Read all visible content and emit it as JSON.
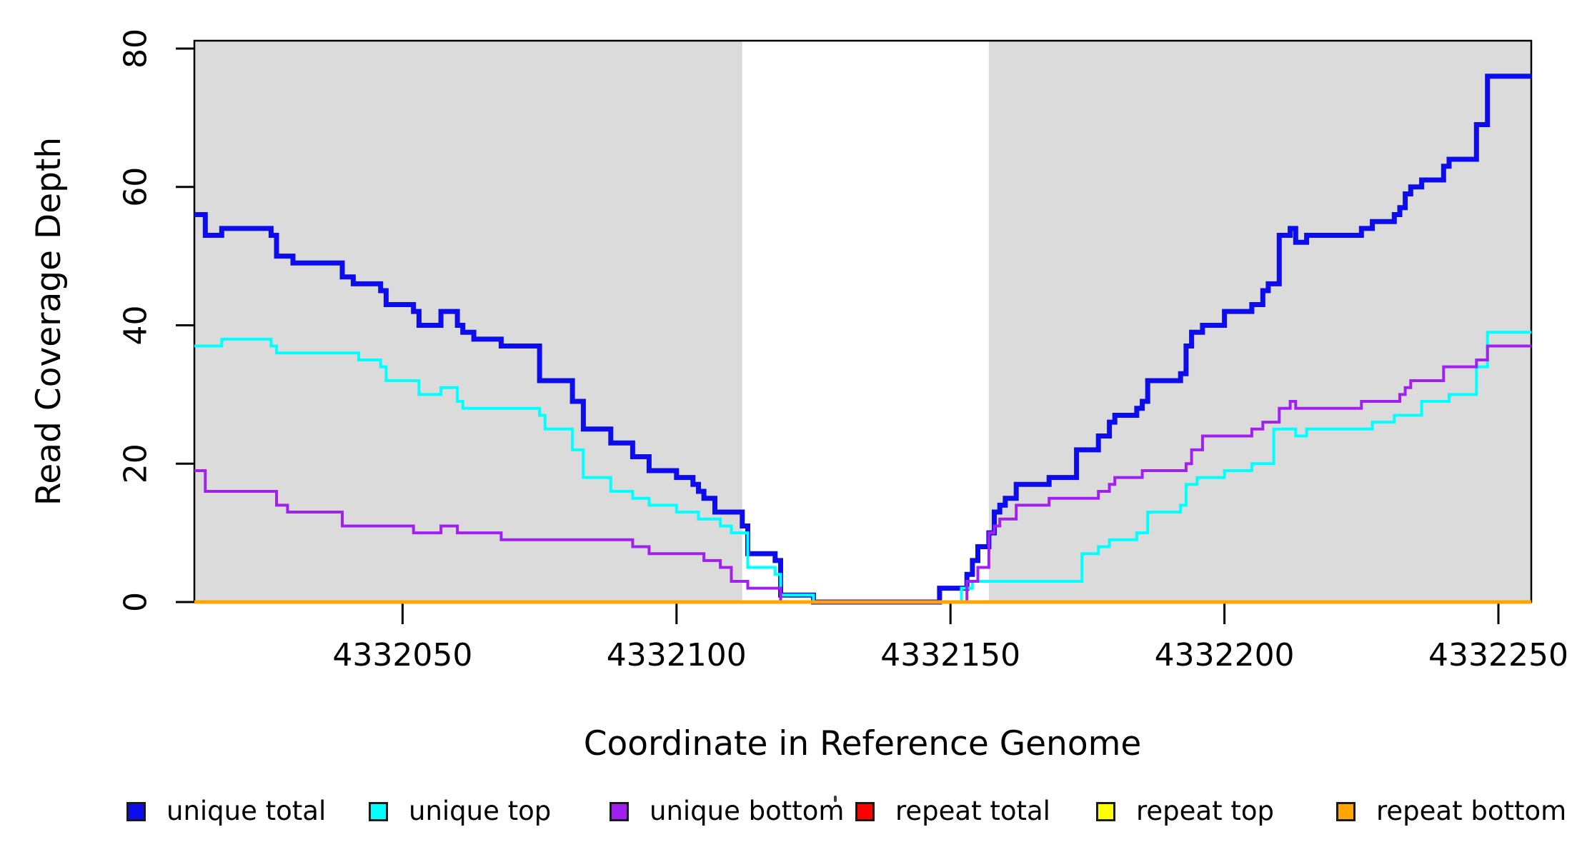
{
  "chart_data": {
    "type": "line",
    "subtype": "step",
    "title": "",
    "xlabel": "Coordinate in Reference Genome",
    "ylabel": "Read Coverage Depth",
    "xlim": [
      4332012,
      4332256
    ],
    "ylim": [
      0,
      80
    ],
    "x_ticks": [
      4332050,
      4332100,
      4332150,
      4332200,
      4332250
    ],
    "y_ticks": [
      0,
      20,
      40,
      60,
      80
    ],
    "grid": false,
    "legend_position": "bottom",
    "plot_bg": "#ffffff",
    "box_color": "#000000",
    "background_regions": [
      {
        "name": "left-shaded-region",
        "x0": 4332012,
        "x1": 4332112,
        "color": "#dbdbdb"
      },
      {
        "name": "right-shaded-region",
        "x0": 4332157,
        "x1": 4332256,
        "color": "#dbdbdb"
      }
    ],
    "series": [
      {
        "name": "unique total",
        "color": "#0d0deb",
        "line_width": 7,
        "steps": [
          [
            4332012,
            56
          ],
          [
            4332014,
            53
          ],
          [
            4332017,
            54
          ],
          [
            4332026,
            53
          ],
          [
            4332027,
            50
          ],
          [
            4332030,
            49
          ],
          [
            4332039,
            47
          ],
          [
            4332041,
            46
          ],
          [
            4332046,
            45
          ],
          [
            4332047,
            43
          ],
          [
            4332052,
            42
          ],
          [
            4332053,
            40
          ],
          [
            4332057,
            42
          ],
          [
            4332060,
            40
          ],
          [
            4332061,
            39
          ],
          [
            4332063,
            38
          ],
          [
            4332068,
            37
          ],
          [
            4332075,
            32
          ],
          [
            4332081,
            29
          ],
          [
            4332083,
            25
          ],
          [
            4332088,
            23
          ],
          [
            4332092,
            21
          ],
          [
            4332095,
            19
          ],
          [
            4332100,
            18
          ],
          [
            4332103,
            17
          ],
          [
            4332104,
            16
          ],
          [
            4332105,
            15
          ],
          [
            4332107,
            13
          ],
          [
            4332112,
            11
          ],
          [
            4332113,
            7
          ],
          [
            4332118,
            6
          ],
          [
            4332119,
            1
          ],
          [
            4332125,
            0
          ],
          [
            4332148,
            2
          ],
          [
            4332153,
            4
          ],
          [
            4332154,
            6
          ],
          [
            4332155,
            8
          ],
          [
            4332157,
            10
          ],
          [
            4332158,
            13
          ],
          [
            4332159,
            14
          ],
          [
            4332160,
            15
          ],
          [
            4332162,
            17
          ],
          [
            4332168,
            18
          ],
          [
            4332173,
            22
          ],
          [
            4332177,
            24
          ],
          [
            4332179,
            26
          ],
          [
            4332180,
            27
          ],
          [
            4332184,
            28
          ],
          [
            4332185,
            29
          ],
          [
            4332186,
            32
          ],
          [
            4332192,
            33
          ],
          [
            4332193,
            37
          ],
          [
            4332194,
            39
          ],
          [
            4332196,
            40
          ],
          [
            4332200,
            42
          ],
          [
            4332205,
            43
          ],
          [
            4332207,
            45
          ],
          [
            4332208,
            46
          ],
          [
            4332210,
            53
          ],
          [
            4332212,
            54
          ],
          [
            4332213,
            52
          ],
          [
            4332215,
            53
          ],
          [
            4332225,
            54
          ],
          [
            4332227,
            55
          ],
          [
            4332231,
            56
          ],
          [
            4332232,
            57
          ],
          [
            4332233,
            59
          ],
          [
            4332234,
            60
          ],
          [
            4332236,
            61
          ],
          [
            4332240,
            63
          ],
          [
            4332241,
            64
          ],
          [
            4332246,
            69
          ],
          [
            4332248,
            76
          ]
        ]
      },
      {
        "name": "unique top",
        "color": "#00ffff",
        "line_width": 4,
        "steps": [
          [
            4332012,
            37
          ],
          [
            4332017,
            38
          ],
          [
            4332026,
            37
          ],
          [
            4332027,
            36
          ],
          [
            4332042,
            35
          ],
          [
            4332046,
            34
          ],
          [
            4332047,
            32
          ],
          [
            4332053,
            30
          ],
          [
            4332057,
            31
          ],
          [
            4332060,
            29
          ],
          [
            4332061,
            28
          ],
          [
            4332075,
            27
          ],
          [
            4332076,
            25
          ],
          [
            4332081,
            22
          ],
          [
            4332083,
            18
          ],
          [
            4332088,
            16
          ],
          [
            4332092,
            15
          ],
          [
            4332095,
            14
          ],
          [
            4332100,
            13
          ],
          [
            4332104,
            12
          ],
          [
            4332108,
            11
          ],
          [
            4332110,
            10
          ],
          [
            4332113,
            5
          ],
          [
            4332118,
            4
          ],
          [
            4332119,
            1
          ],
          [
            4332125,
            0
          ],
          [
            4332152,
            2
          ],
          [
            4332154,
            3
          ],
          [
            4332174,
            7
          ],
          [
            4332177,
            8
          ],
          [
            4332179,
            9
          ],
          [
            4332184,
            10
          ],
          [
            4332186,
            13
          ],
          [
            4332192,
            14
          ],
          [
            4332193,
            17
          ],
          [
            4332195,
            18
          ],
          [
            4332200,
            19
          ],
          [
            4332205,
            20
          ],
          [
            4332209,
            25
          ],
          [
            4332213,
            24
          ],
          [
            4332215,
            25
          ],
          [
            4332227,
            26
          ],
          [
            4332231,
            27
          ],
          [
            4332236,
            29
          ],
          [
            4332241,
            30
          ],
          [
            4332246,
            34
          ],
          [
            4332248,
            39
          ]
        ]
      },
      {
        "name": "unique bottom",
        "color": "#a020f0",
        "line_width": 4,
        "steps": [
          [
            4332012,
            19
          ],
          [
            4332014,
            16
          ],
          [
            4332027,
            14
          ],
          [
            4332029,
            13
          ],
          [
            4332039,
            11
          ],
          [
            4332052,
            10
          ],
          [
            4332057,
            11
          ],
          [
            4332060,
            10
          ],
          [
            4332068,
            9
          ],
          [
            4332092,
            8
          ],
          [
            4332095,
            7
          ],
          [
            4332105,
            6
          ],
          [
            4332108,
            5
          ],
          [
            4332110,
            3
          ],
          [
            4332113,
            2
          ],
          [
            4332119,
            0
          ],
          [
            4332153,
            3
          ],
          [
            4332155,
            5
          ],
          [
            4332157,
            10
          ],
          [
            4332158,
            11
          ],
          [
            4332159,
            12
          ],
          [
            4332162,
            14
          ],
          [
            4332168,
            15
          ],
          [
            4332177,
            16
          ],
          [
            4332179,
            17
          ],
          [
            4332180,
            18
          ],
          [
            4332185,
            19
          ],
          [
            4332193,
            20
          ],
          [
            4332194,
            22
          ],
          [
            4332196,
            24
          ],
          [
            4332205,
            25
          ],
          [
            4332207,
            26
          ],
          [
            4332210,
            28
          ],
          [
            4332212,
            29
          ],
          [
            4332213,
            28
          ],
          [
            4332225,
            29
          ],
          [
            4332232,
            30
          ],
          [
            4332233,
            31
          ],
          [
            4332234,
            32
          ],
          [
            4332240,
            34
          ],
          [
            4332246,
            35
          ],
          [
            4332248,
            37
          ]
        ]
      },
      {
        "name": "repeat total",
        "color": "#ff0000",
        "line_width": 4,
        "steps": [
          [
            4332012,
            0
          ]
        ]
      },
      {
        "name": "repeat top",
        "color": "#ffff00",
        "line_width": 4,
        "steps": [
          [
            4332012,
            0
          ]
        ]
      },
      {
        "name": "repeat bottom",
        "color": "#ffa500",
        "line_width": 5,
        "steps": [
          [
            4332012,
            0
          ]
        ]
      }
    ]
  }
}
